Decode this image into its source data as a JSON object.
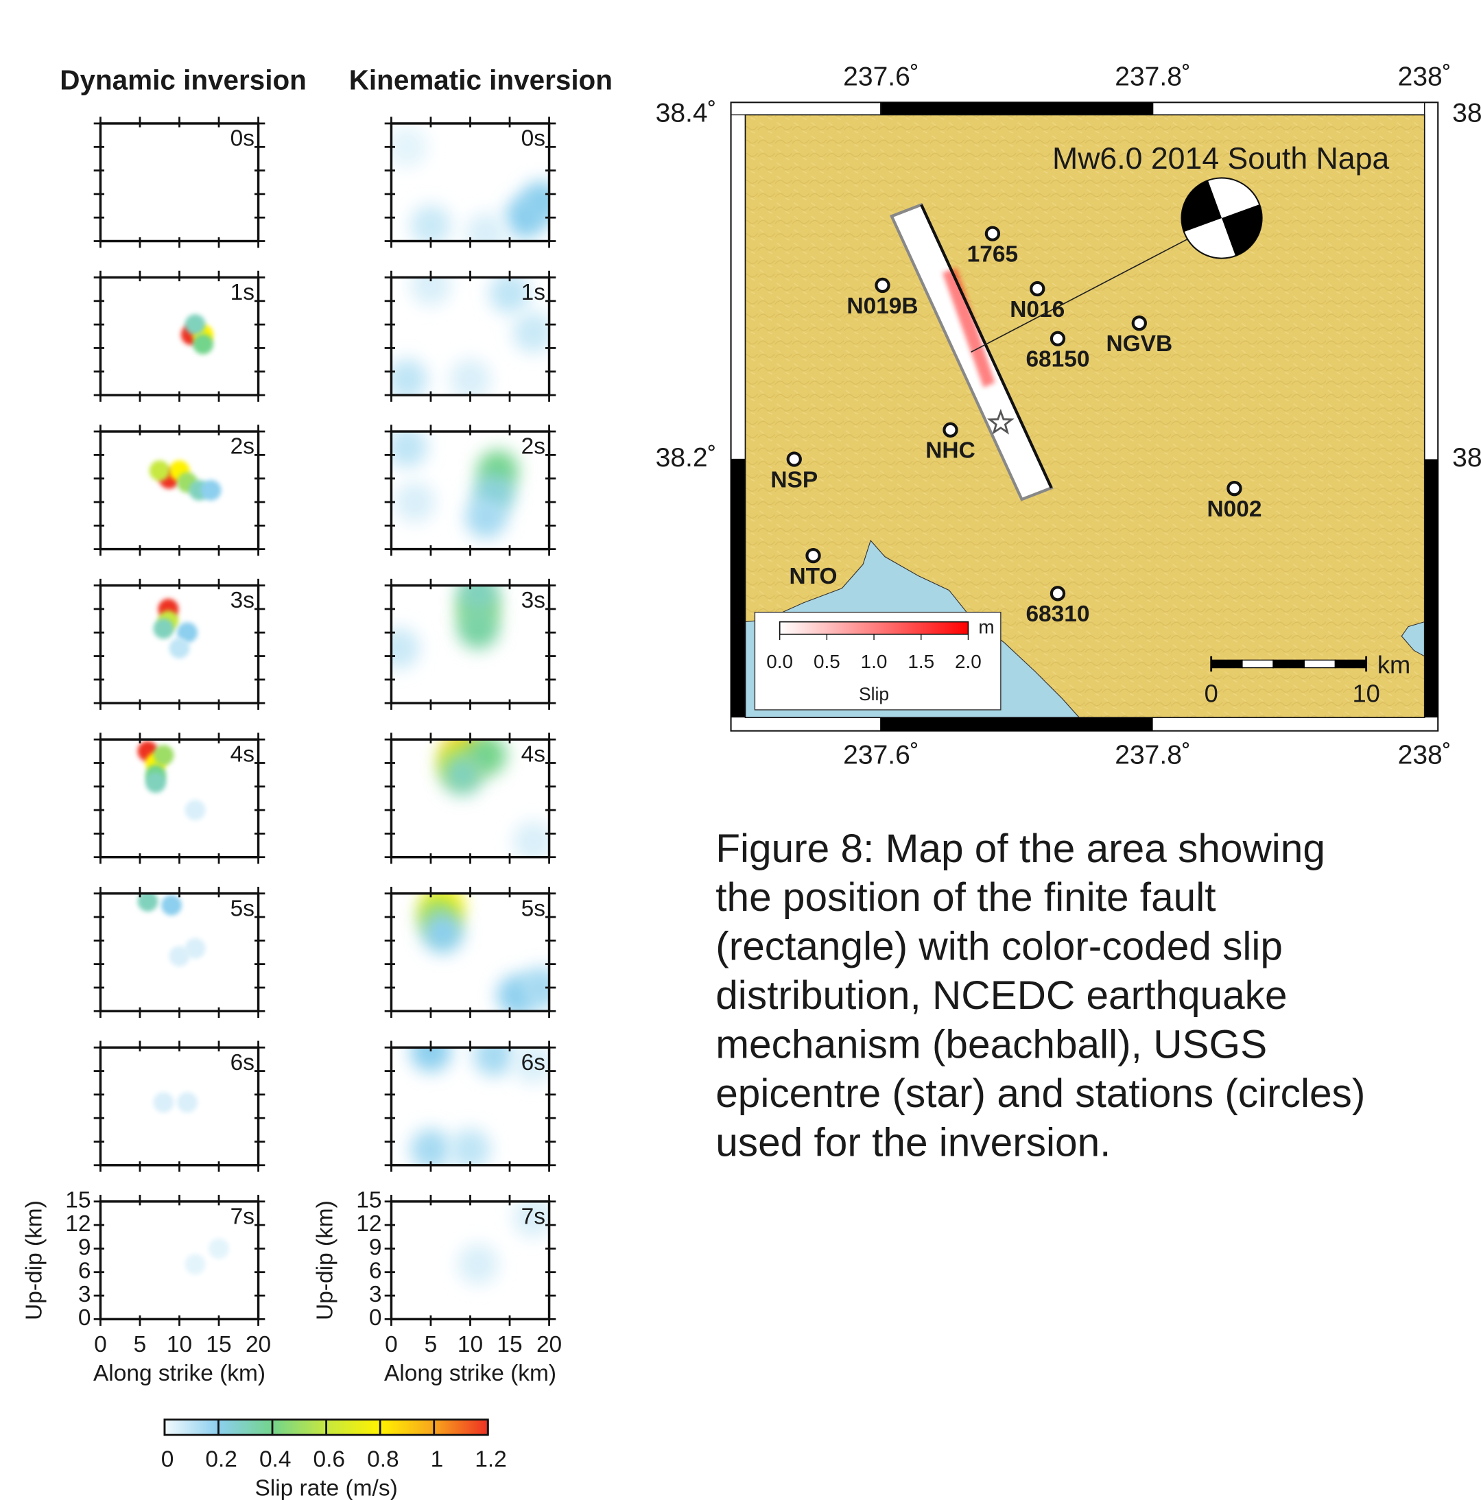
{
  "figure": {
    "columns": [
      {
        "title": "Dynamic inversion",
        "panels": [
          {
            "label": "0s",
            "patches": []
          },
          {
            "label": "1s",
            "patches": [
              {
                "x": 11.5,
                "y": 7.7,
                "value": 1.2
              },
              {
                "x": 13,
                "y": 7.7,
                "value": 0.8
              },
              {
                "x": 13,
                "y": 6.5,
                "value": 0.4
              },
              {
                "x": 12,
                "y": 9,
                "value": 0.3
              }
            ]
          },
          {
            "label": "2s",
            "patches": [
              {
                "x": 8.7,
                "y": 9,
                "value": 1.2
              },
              {
                "x": 10,
                "y": 10,
                "value": 0.8
              },
              {
                "x": 7.5,
                "y": 10,
                "value": 0.6
              },
              {
                "x": 11,
                "y": 8.5,
                "value": 0.5
              },
              {
                "x": 12.5,
                "y": 7.5,
                "value": 0.3
              },
              {
                "x": 14,
                "y": 7.5,
                "value": 0.2
              }
            ]
          },
          {
            "label": "3s",
            "patches": [
              {
                "x": 8.6,
                "y": 12,
                "value": 1.2
              },
              {
                "x": 8.6,
                "y": 10.5,
                "value": 0.6
              },
              {
                "x": 8,
                "y": 9.5,
                "value": 0.3
              },
              {
                "x": 11,
                "y": 9,
                "value": 0.2
              },
              {
                "x": 10,
                "y": 7,
                "value": 0.1
              }
            ]
          },
          {
            "label": "4s",
            "patches": [
              {
                "x": 6,
                "y": 13.5,
                "value": 1.2
              },
              {
                "x": 7,
                "y": 12,
                "value": 0.8
              },
              {
                "x": 8,
                "y": 13,
                "value": 0.5
              },
              {
                "x": 7,
                "y": 10.5,
                "value": 0.4
              },
              {
                "x": 7,
                "y": 9.5,
                "value": 0.3
              },
              {
                "x": 12,
                "y": 6,
                "value": 0.05
              }
            ]
          },
          {
            "label": "5s",
            "patches": [
              {
                "x": 6,
                "y": 14,
                "value": 0.3
              },
              {
                "x": 9,
                "y": 13.5,
                "value": 0.2
              },
              {
                "x": 10,
                "y": 7,
                "value": 0.05
              },
              {
                "x": 12,
                "y": 8,
                "value": 0.05
              }
            ]
          },
          {
            "label": "6s",
            "patches": [
              {
                "x": 8,
                "y": 8,
                "value": 0.05
              },
              {
                "x": 11,
                "y": 8,
                "value": 0.05
              }
            ]
          },
          {
            "label": "7s",
            "patches": [
              {
                "x": 12,
                "y": 7,
                "value": 0.03
              },
              {
                "x": 15,
                "y": 9,
                "value": 0.03
              }
            ]
          }
        ]
      },
      {
        "title": "Kinematic inversion",
        "panels": [
          {
            "label": "0s",
            "patches": [
              {
                "x": 17,
                "y": 3,
                "value": 0.2
              },
              {
                "x": 19,
                "y": 5,
                "value": 0.2
              },
              {
                "x": 5,
                "y": 2,
                "value": 0.08
              },
              {
                "x": 12,
                "y": 1,
                "value": 0.05
              },
              {
                "x": 2,
                "y": 12,
                "value": 0.03
              }
            ]
          },
          {
            "label": "1s",
            "patches": [
              {
                "x": 15,
                "y": 13,
                "value": 0.1
              },
              {
                "x": 2,
                "y": 2,
                "value": 0.1
              },
              {
                "x": 10,
                "y": 2,
                "value": 0.05
              },
              {
                "x": 18,
                "y": 8,
                "value": 0.08
              },
              {
                "x": 5,
                "y": 14,
                "value": 0.05
              }
            ]
          },
          {
            "label": "2s",
            "patches": [
              {
                "x": 13.5,
                "y": 10,
                "value": 0.4
              },
              {
                "x": 13,
                "y": 7,
                "value": 0.25
              },
              {
                "x": 2,
                "y": 13,
                "value": 0.1
              },
              {
                "x": 12,
                "y": 4,
                "value": 0.15
              },
              {
                "x": 3,
                "y": 6,
                "value": 0.05
              }
            ]
          },
          {
            "label": "3s",
            "patches": [
              {
                "x": 11,
                "y": 12,
                "value": 0.45
              },
              {
                "x": 11,
                "y": 9.5,
                "value": 0.35
              },
              {
                "x": 11,
                "y": 14,
                "value": 0.3
              },
              {
                "x": 1,
                "y": 7,
                "value": 0.08
              }
            ]
          },
          {
            "label": "4s",
            "patches": [
              {
                "x": 9.2,
                "y": 13.5,
                "value": 0.9
              },
              {
                "x": 8.5,
                "y": 12,
                "value": 0.6
              },
              {
                "x": 12,
                "y": 13,
                "value": 0.4
              },
              {
                "x": 9,
                "y": 10.5,
                "value": 0.3
              },
              {
                "x": 18,
                "y": 2,
                "value": 0.05
              }
            ]
          },
          {
            "label": "5s",
            "patches": [
              {
                "x": 6.5,
                "y": 13.5,
                "value": 0.8
              },
              {
                "x": 6,
                "y": 12,
                "value": 0.5
              },
              {
                "x": 6.5,
                "y": 10,
                "value": 0.2
              },
              {
                "x": 16,
                "y": 2,
                "value": 0.2
              },
              {
                "x": 19,
                "y": 3,
                "value": 0.15
              }
            ]
          },
          {
            "label": "6s",
            "patches": [
              {
                "x": 5,
                "y": 14.5,
                "value": 0.2
              },
              {
                "x": 13,
                "y": 14,
                "value": 0.15
              },
              {
                "x": 5,
                "y": 2,
                "value": 0.15
              },
              {
                "x": 10,
                "y": 2,
                "value": 0.1
              },
              {
                "x": 18,
                "y": 13,
                "value": 0.05
              }
            ]
          },
          {
            "label": "7s",
            "patches": [
              {
                "x": 11,
                "y": 7,
                "value": 0.05
              },
              {
                "x": 18,
                "y": 13,
                "value": 0.05
              }
            ]
          }
        ]
      }
    ],
    "x_axis": {
      "label": "Along strike (km)",
      "lim": [
        0,
        20
      ],
      "ticks": [
        0,
        5,
        10,
        15,
        20
      ]
    },
    "y_axis": {
      "label": "Up-dip (km)",
      "lim": [
        0,
        15
      ],
      "ticks": [
        0,
        3,
        6,
        9,
        12,
        15
      ]
    },
    "colorbar": {
      "label": "Slip rate (m/s)",
      "lim": [
        0,
        1.2
      ],
      "ticks": [
        0,
        0.2,
        0.4,
        0.6,
        0.8,
        1,
        1.2
      ],
      "colors": [
        "#f2fafd",
        "#8ccfee",
        "#73d48c",
        "#c6e83f",
        "#fff200",
        "#f8a51d",
        "#ee3124"
      ]
    }
  },
  "map": {
    "title": "Mw6.0 2014 South Napa",
    "lon_lim": [
      237.5,
      238
    ],
    "lat_lim": [
      38.05,
      38.4
    ],
    "lon_ticks": [
      {
        "value": 237.6,
        "label": "237.6˚"
      },
      {
        "value": 237.8,
        "label": "237.8˚"
      },
      {
        "value": 238,
        "label": "238˚"
      }
    ],
    "lat_ticks": [
      {
        "value": 38.2,
        "label": "38.2˚"
      },
      {
        "value": 38.4,
        "label": "38.4˚"
      }
    ],
    "stations": [
      {
        "name": "1765",
        "lon": 237.682,
        "lat": 38.331
      },
      {
        "name": "N019B",
        "lon": 237.601,
        "lat": 38.301
      },
      {
        "name": "N016",
        "lon": 237.715,
        "lat": 38.299
      },
      {
        "name": "68150",
        "lon": 237.73,
        "lat": 38.27
      },
      {
        "name": "NGVB",
        "lon": 237.79,
        "lat": 38.279
      },
      {
        "name": "NHC",
        "lon": 237.651,
        "lat": 38.217
      },
      {
        "name": "NSP",
        "lon": 237.536,
        "lat": 38.2
      },
      {
        "name": "N002",
        "lon": 237.86,
        "lat": 38.183
      },
      {
        "name": "NTO",
        "lon": 237.55,
        "lat": 38.144
      },
      {
        "name": "68310",
        "lon": 237.73,
        "lat": 38.122
      }
    ],
    "epicenter": {
      "lon": 237.688,
      "lat": 38.221
    },
    "slip_legend": {
      "unit": "m",
      "label": "Slip",
      "lim": [
        0,
        2
      ],
      "ticks": [
        {
          "value": 0,
          "label": "0.0"
        },
        0.5,
        {
          "value": 1,
          "label": "1.0"
        },
        1.5,
        {
          "value": 2,
          "label": "2.0"
        }
      ],
      "colors": [
        "#ffffff",
        "#ff0000"
      ]
    },
    "scale_bar": {
      "unit": "km",
      "ticks": [
        0,
        10
      ]
    }
  },
  "caption": [
    "Figure 8: Map of the area showing",
    "the position of the finite fault",
    "(rectangle) with color-coded slip",
    "distribution, NCEDC earthquake",
    "mechanism (beachball), USGS",
    "epicentre (star) and stations (circles)",
    "used for the inversion."
  ]
}
